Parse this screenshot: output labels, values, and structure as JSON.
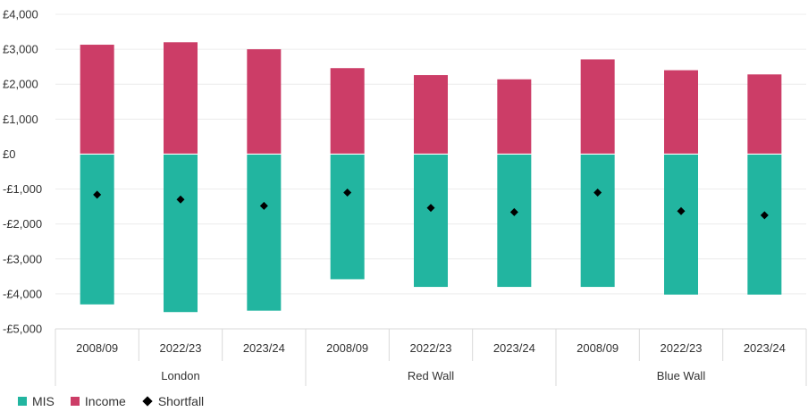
{
  "chart_data": {
    "type": "bar",
    "groups": [
      {
        "name": "London",
        "categories": [
          "2008/09",
          "2022/23",
          "2023/24"
        ]
      },
      {
        "name": "Red Wall",
        "categories": [
          "2008/09",
          "2022/23",
          "2023/24"
        ]
      },
      {
        "name": "Blue Wall",
        "categories": [
          "2008/09",
          "2022/23",
          "2023/24"
        ]
      }
    ],
    "series": [
      {
        "name": "MIS",
        "values": [
          -4300,
          -4520,
          -4480,
          -3580,
          -3800,
          -3800,
          -3800,
          -4020,
          -4020
        ],
        "color": "#22b5a0"
      },
      {
        "name": "Income",
        "values": [
          3130,
          3200,
          3000,
          2460,
          2260,
          2140,
          2710,
          2400,
          2280
        ],
        "color": "#cc3d67"
      },
      {
        "name": "Shortfall",
        "values": [
          -1160,
          -1300,
          -1480,
          -1100,
          -1540,
          -1660,
          -1100,
          -1630,
          -1750
        ],
        "color": "#000000",
        "marker": "diamond"
      }
    ],
    "ylim": [
      -5000,
      4000
    ],
    "yticks": [
      4000,
      3000,
      2000,
      1000,
      0,
      -1000,
      -2000,
      -3000,
      -4000,
      -5000
    ],
    "ytick_labels": [
      "£4,000",
      "£3,000",
      "£2,000",
      "£1,000",
      "£0",
      "-£1,000",
      "-£2,000",
      "-£3,000",
      "-£4,000",
      "-£5,000"
    ],
    "grid": true,
    "legend": "bottom-left"
  }
}
